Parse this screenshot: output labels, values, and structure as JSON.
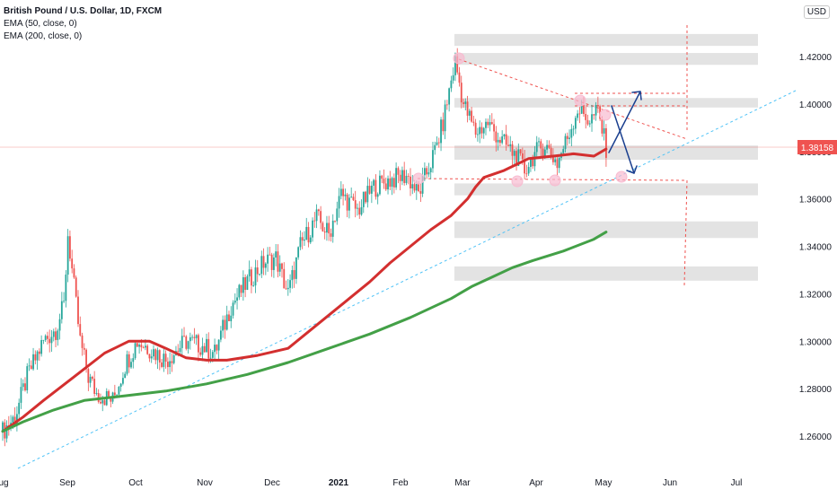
{
  "legend": {
    "symbol": "British Pound / U.S. Dollar, 1D, FXCM",
    "indicator_1": "EMA (50, close, 0)",
    "indicator_2": "EMA (200, close, 0)"
  },
  "currency": "USD",
  "last_price_label": "1.38158",
  "colors": {
    "up_candle": "#26a69a",
    "down_candle": "#ef5350",
    "ema50": "#d32f2f",
    "ema200": "#43a047",
    "trendline": "#4fc3f7",
    "annotation_red": "#ef5350",
    "arrow": "#1a3f8f",
    "zone": "#d9d9d9",
    "marker": "#f8bbd0"
  },
  "chart_data": {
    "type": "candlestick",
    "y_axis": {
      "min": 1.252,
      "max": 1.434,
      "ticks": [
        "1.26000",
        "1.28000",
        "1.30000",
        "1.32000",
        "1.34000",
        "1.36000",
        "1.38000",
        "1.40000",
        "1.42000"
      ],
      "tick_values": [
        1.26,
        1.28,
        1.3,
        1.32,
        1.34,
        1.36,
        1.38,
        1.4,
        1.42
      ],
      "top_partial_label": "0"
    },
    "x_axis": {
      "tick_labels": [
        "ug",
        "Sep",
        "Oct",
        "Nov",
        "Dec",
        "2021",
        "Feb",
        "Mar",
        "Apr",
        "May",
        "Jun",
        "Jul"
      ],
      "bold_labels": [
        "2021"
      ]
    },
    "series": [
      {
        "name": "EMA (50, close, 0)",
        "points": [
          [
            0,
            1.262
          ],
          [
            10,
            1.268
          ],
          [
            20,
            1.275
          ],
          [
            35,
            1.285
          ],
          [
            50,
            1.295
          ],
          [
            62,
            1.3
          ],
          [
            72,
            1.3
          ],
          [
            80,
            1.297
          ],
          [
            90,
            1.293
          ],
          [
            100,
            1.292
          ],
          [
            110,
            1.292
          ],
          [
            125,
            1.294
          ],
          [
            140,
            1.297
          ],
          [
            150,
            1.304
          ],
          [
            160,
            1.311
          ],
          [
            170,
            1.318
          ],
          [
            180,
            1.325
          ],
          [
            190,
            1.333
          ],
          [
            200,
            1.34
          ],
          [
            210,
            1.347
          ],
          [
            220,
            1.353
          ],
          [
            228,
            1.36
          ],
          [
            232,
            1.365
          ],
          [
            236,
            1.369
          ],
          [
            246,
            1.372
          ],
          [
            258,
            1.377
          ],
          [
            270,
            1.378
          ],
          [
            280,
            1.379
          ],
          [
            290,
            1.378
          ],
          [
            296,
            1.381
          ]
        ]
      },
      {
        "name": "EMA (200, close, 0)",
        "points": [
          [
            0,
            1.262
          ],
          [
            10,
            1.266
          ],
          [
            25,
            1.271
          ],
          [
            40,
            1.275
          ],
          [
            60,
            1.277
          ],
          [
            80,
            1.279
          ],
          [
            100,
            1.282
          ],
          [
            120,
            1.286
          ],
          [
            140,
            1.291
          ],
          [
            160,
            1.297
          ],
          [
            180,
            1.303
          ],
          [
            200,
            1.31
          ],
          [
            220,
            1.318
          ],
          [
            230,
            1.323
          ],
          [
            240,
            1.327
          ],
          [
            250,
            1.331
          ],
          [
            260,
            1.334
          ],
          [
            275,
            1.338
          ],
          [
            290,
            1.343
          ],
          [
            296,
            1.346
          ]
        ]
      }
    ],
    "candles_summary": {
      "from_index": 0,
      "to_index": 296,
      "last_close": 1.38158
    }
  }
}
